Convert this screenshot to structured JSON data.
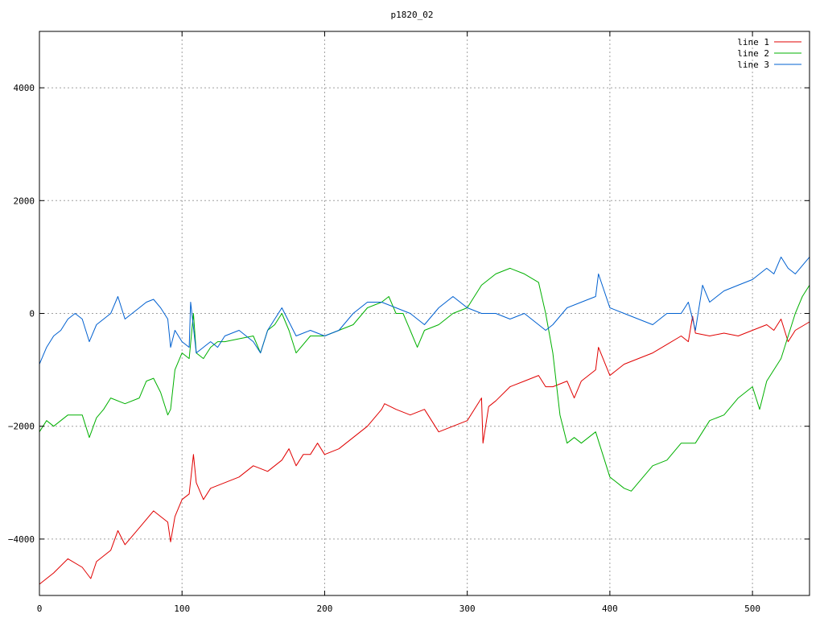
{
  "chart_data": {
    "type": "line",
    "title": "p1820_02",
    "xlabel": "",
    "ylabel": "",
    "xlim": [
      0,
      540
    ],
    "ylim": [
      -5000,
      5000
    ],
    "xticks": [
      0,
      100,
      200,
      300,
      400,
      500
    ],
    "yticks": [
      -4000,
      -2000,
      0,
      2000,
      4000
    ],
    "grid": true,
    "legend_position": "top-right",
    "series": [
      {
        "name": "line 1",
        "color": "#e00000",
        "x": [
          0,
          10,
          20,
          30,
          36,
          40,
          50,
          55,
          60,
          70,
          80,
          85,
          90,
          92,
          95,
          100,
          105,
          108,
          110,
          115,
          120,
          130,
          140,
          150,
          160,
          170,
          175,
          180,
          185,
          190,
          195,
          200,
          210,
          220,
          230,
          240,
          242,
          250,
          260,
          270,
          280,
          290,
          300,
          310,
          311,
          315,
          320,
          330,
          340,
          350,
          355,
          360,
          370,
          375,
          380,
          390,
          392,
          400,
          410,
          420,
          430,
          440,
          450,
          455,
          458,
          460,
          470,
          480,
          490,
          500,
          510,
          515,
          520,
          525,
          530,
          540
        ],
        "y": [
          -4800,
          -4600,
          -4350,
          -4500,
          -4700,
          -4400,
          -4200,
          -3850,
          -4100,
          -3800,
          -3500,
          -3600,
          -3700,
          -4050,
          -3600,
          -3300,
          -3200,
          -2500,
          -3000,
          -3300,
          -3100,
          -3000,
          -2900,
          -2700,
          -2800,
          -2600,
          -2400,
          -2700,
          -2500,
          -2500,
          -2300,
          -2500,
          -2400,
          -2200,
          -2000,
          -1700,
          -1600,
          -1700,
          -1800,
          -1700,
          -2100,
          -2000,
          -1900,
          -1500,
          -2300,
          -1650,
          -1550,
          -1300,
          -1200,
          -1100,
          -1300,
          -1300,
          -1200,
          -1500,
          -1200,
          -1000,
          -600,
          -1100,
          -900,
          -800,
          -700,
          -550,
          -400,
          -500,
          -50,
          -350,
          -400,
          -350,
          -400,
          -300,
          -200,
          -300,
          -100,
          -500,
          -300,
          -150
        ]
      },
      {
        "name": "line 2",
        "color": "#00b000",
        "x": [
          0,
          5,
          10,
          20,
          30,
          35,
          40,
          45,
          50,
          60,
          70,
          75,
          80,
          85,
          90,
          92,
          95,
          100,
          105,
          108,
          110,
          115,
          120,
          125,
          130,
          140,
          150,
          155,
          160,
          165,
          170,
          175,
          180,
          190,
          200,
          210,
          220,
          230,
          240,
          245,
          250,
          255,
          260,
          265,
          270,
          280,
          290,
          300,
          305,
          310,
          320,
          330,
          340,
          350,
          355,
          360,
          365,
          370,
          375,
          380,
          390,
          400,
          410,
          415,
          420,
          430,
          440,
          450,
          460,
          470,
          480,
          490,
          500,
          505,
          510,
          520,
          530,
          535,
          540
        ],
        "y": [
          -2100,
          -1900,
          -2000,
          -1800,
          -1800,
          -2200,
          -1850,
          -1700,
          -1500,
          -1600,
          -1500,
          -1200,
          -1150,
          -1400,
          -1800,
          -1700,
          -1000,
          -700,
          -800,
          0,
          -700,
          -800,
          -600,
          -500,
          -500,
          -450,
          -400,
          -700,
          -300,
          -200,
          0,
          -300,
          -700,
          -400,
          -400,
          -300,
          -200,
          100,
          200,
          300,
          0,
          0,
          -300,
          -600,
          -300,
          -200,
          0,
          100,
          300,
          500,
          700,
          800,
          700,
          550,
          0,
          -700,
          -1800,
          -2300,
          -2200,
          -2300,
          -2100,
          -2900,
          -3100,
          -3150,
          -3000,
          -2700,
          -2600,
          -2300,
          -2300,
          -1900,
          -1800,
          -1500,
          -1300,
          -1700,
          -1200,
          -800,
          0,
          300,
          500
        ]
      },
      {
        "name": "line 3",
        "color": "#0060d0",
        "x": [
          0,
          5,
          10,
          15,
          20,
          25,
          30,
          35,
          40,
          45,
          50,
          55,
          60,
          65,
          70,
          75,
          80,
          85,
          90,
          92,
          95,
          100,
          105,
          106,
          110,
          115,
          120,
          125,
          130,
          140,
          150,
          155,
          160,
          170,
          180,
          190,
          200,
          210,
          220,
          230,
          240,
          250,
          260,
          270,
          280,
          290,
          300,
          310,
          320,
          330,
          340,
          350,
          355,
          360,
          370,
          380,
          390,
          392,
          400,
          410,
          420,
          430,
          440,
          450,
          455,
          460,
          465,
          470,
          480,
          490,
          500,
          510,
          515,
          520,
          525,
          530,
          540
        ],
        "y": [
          -900,
          -600,
          -400,
          -300,
          -100,
          0,
          -100,
          -500,
          -200,
          -100,
          0,
          300,
          -100,
          0,
          100,
          200,
          250,
          100,
          -100,
          -600,
          -300,
          -500,
          -600,
          200,
          -700,
          -600,
          -500,
          -600,
          -400,
          -300,
          -500,
          -700,
          -300,
          100,
          -400,
          -300,
          -400,
          -300,
          0,
          200,
          200,
          100,
          0,
          -200,
          100,
          300,
          100,
          0,
          0,
          -100,
          0,
          -200,
          -300,
          -200,
          100,
          200,
          300,
          700,
          100,
          0,
          -100,
          -200,
          0,
          0,
          200,
          -300,
          500,
          200,
          400,
          500,
          600,
          800,
          700,
          1000,
          800,
          700,
          1000
        ]
      }
    ]
  }
}
